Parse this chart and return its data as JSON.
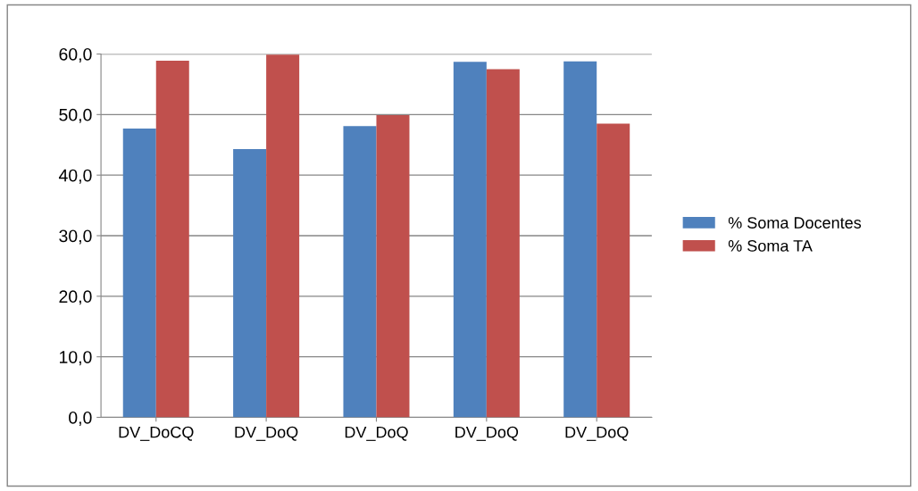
{
  "chart_data": {
    "type": "bar",
    "categories": [
      "DV_DoCQ",
      "DV_DoQ",
      "DV_DoQ",
      "DV_DoQ",
      "DV_DoQ"
    ],
    "series": [
      {
        "name": "% Soma Docentes",
        "color": "#4f81bd",
        "values": [
          47.7,
          44.3,
          48.1,
          58.7,
          58.8
        ]
      },
      {
        "name": "% Soma TA",
        "color": "#c0504d",
        "values": [
          58.9,
          59.9,
          49.9,
          57.5,
          48.5
        ]
      }
    ],
    "ylim": [
      0,
      60
    ],
    "yticks": [
      {
        "value": 0,
        "label": "0,0"
      },
      {
        "value": 10,
        "label": "10,0"
      },
      {
        "value": 20,
        "label": "20,0"
      },
      {
        "value": 30,
        "label": "30,0"
      },
      {
        "value": 40,
        "label": "40,0"
      },
      {
        "value": 50,
        "label": "50,0"
      },
      {
        "value": 60,
        "label": "60,0"
      }
    ],
    "grid": "y",
    "legend": "right"
  }
}
